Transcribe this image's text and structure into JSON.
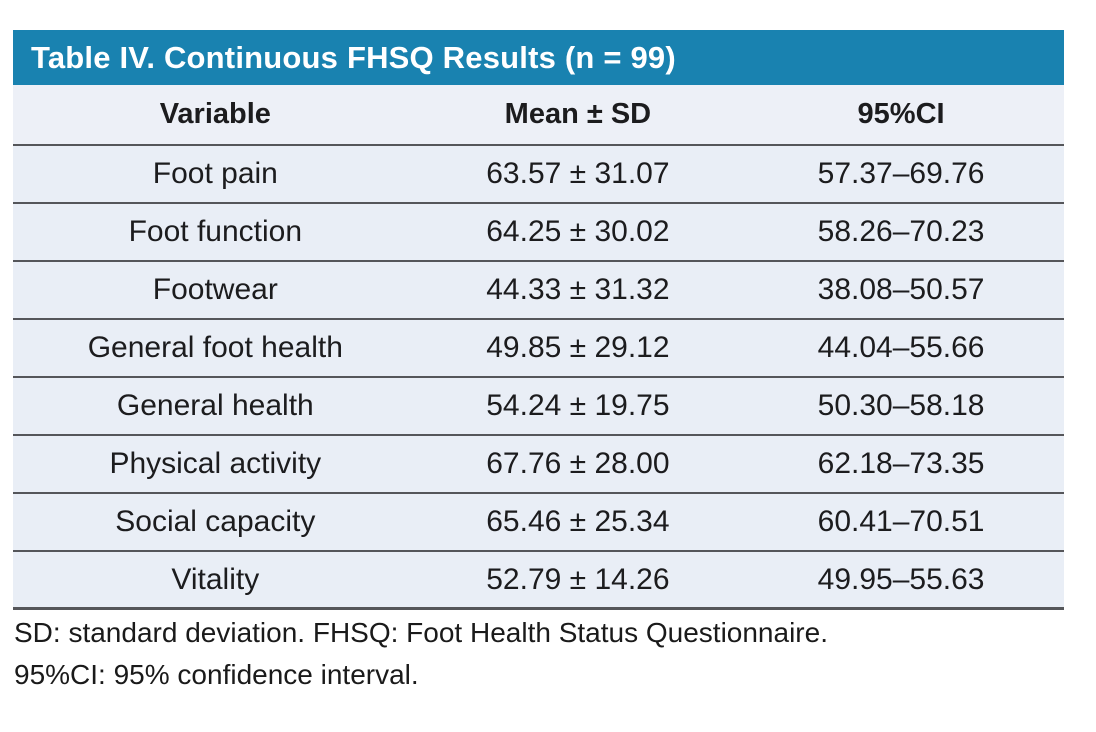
{
  "colors": {
    "accent": "#1982b0",
    "rowBg": "#e9eef6",
    "headerRowBg": "#edf0f7",
    "ruleColor": "#55565a",
    "textColor": "#1c1c1e"
  },
  "table": {
    "title": "Table IV. Continuous FHSQ Results (n = 99)",
    "columns": [
      "Variable",
      "Mean ± SD",
      "95%CI"
    ],
    "rows": [
      [
        "Foot pain",
        "63.57 ± 31.07",
        "57.37–69.76"
      ],
      [
        "Foot function",
        "64.25 ± 30.02",
        "58.26–70.23"
      ],
      [
        "Footwear",
        "44.33 ± 31.32",
        "38.08–50.57"
      ],
      [
        "General foot health",
        "49.85 ± 29.12",
        "44.04–55.66"
      ],
      [
        "General health",
        "54.24 ± 19.75",
        "50.30–58.18"
      ],
      [
        "Physical activity",
        "67.76 ± 28.00",
        "62.18–73.35"
      ],
      [
        "Social capacity",
        "65.46 ± 25.34",
        "60.41–70.51"
      ],
      [
        "Vitality",
        "52.79 ± 14.26",
        "49.95–55.63"
      ]
    ]
  },
  "footnotes": {
    "line1": "SD: standard deviation. FHSQ: Foot Health Status Questionnaire.",
    "line2": "95%CI: 95% confidence interval."
  }
}
